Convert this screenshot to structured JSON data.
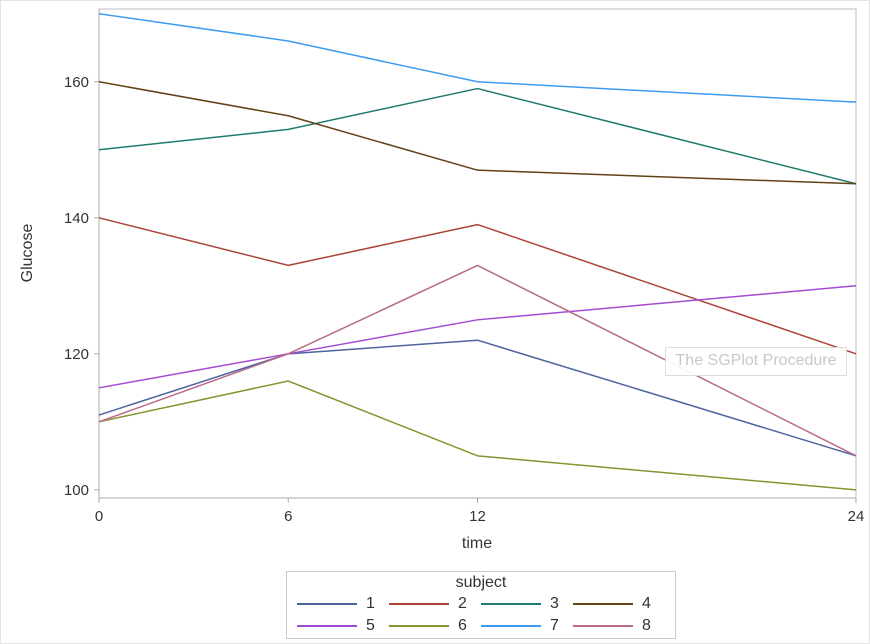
{
  "watermark": {
    "text": "The SGPlot Procedure"
  },
  "chart_data": {
    "type": "line",
    "title": "",
    "xlabel": "time",
    "ylabel": "Glucose",
    "x": [
      0,
      6,
      12,
      24
    ],
    "x_ticks": [
      "0",
      "6",
      "12",
      "24"
    ],
    "x_tick_values": [
      0,
      6,
      12,
      24
    ],
    "y_ticks": [
      "100",
      "120",
      "140",
      "160"
    ],
    "y_tick_values": [
      100,
      120,
      140,
      160
    ],
    "xlim": [
      0,
      24
    ],
    "ylim": [
      98.8,
      170.7
    ],
    "grid": false,
    "frame": true,
    "legend": {
      "title": "subject",
      "position": "bottom",
      "rows": 2,
      "columns": 4
    },
    "series": [
      {
        "name": "1",
        "color": "#4f639e",
        "values": [
          111,
          120,
          122,
          105
        ]
      },
      {
        "name": "2",
        "color": "#ac4437",
        "values": [
          140,
          133,
          139,
          120
        ]
      },
      {
        "name": "3",
        "color": "#1f7a6e",
        "values": [
          150,
          153,
          159,
          145
        ]
      },
      {
        "name": "4",
        "color": "#634217",
        "values": [
          160,
          155,
          147,
          145
        ]
      },
      {
        "name": "5",
        "color": "#a44bd3",
        "values": [
          115,
          120,
          125,
          130
        ]
      },
      {
        "name": "6",
        "color": "#879430",
        "values": [
          110,
          116,
          105,
          100
        ]
      },
      {
        "name": "7",
        "color": "#3d9cf0",
        "values": [
          170,
          166,
          160,
          157
        ]
      },
      {
        "name": "8",
        "color": "#bb6a87",
        "values": [
          110,
          120,
          133,
          105
        ]
      }
    ],
    "colors": {
      "axis_line": "#a8a8a8",
      "frame_line": "#bdbdbd",
      "tick_label": "#333333"
    }
  }
}
